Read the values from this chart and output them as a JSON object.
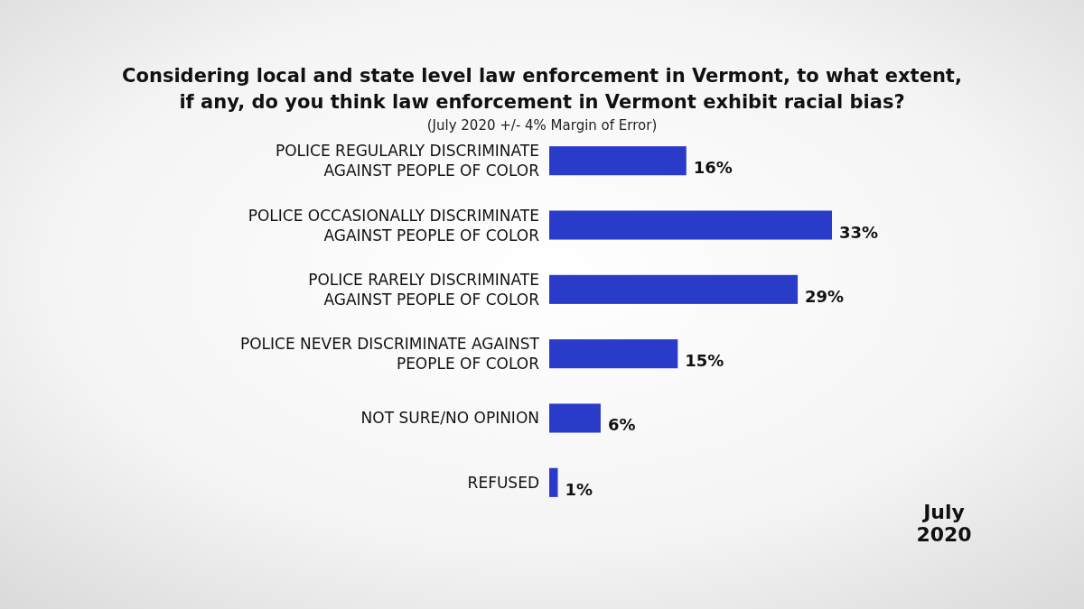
{
  "chart_data": {
    "type": "bar",
    "orientation": "horizontal",
    "title": "Considering local and state level law enforcement in Vermont, to what extent, if any, do you think law enforcement in Vermont exhibit racial bias?",
    "subtitle": "(July 2020 +/- 4% Margin of Error)",
    "categories": [
      "POLICE REGULARLY DISCRIMINATE AGAINST PEOPLE OF COLOR",
      "POLICE OCCASIONALLY DISCRIMINATE AGAINST PEOPLE OF COLOR",
      "POLICE RARELY DISCRIMINATE AGAINST PEOPLE OF COLOR",
      "POLICE NEVER DISCRIMINATE AGAINST PEOPLE OF COLOR",
      "NOT SURE/NO OPINION",
      "REFUSED"
    ],
    "values": [
      16,
      33,
      29,
      15,
      6,
      1
    ],
    "value_labels": [
      "16%",
      "33%",
      "29%",
      "15%",
      "6%",
      "1%"
    ],
    "color": "#2a3bc9",
    "annotations": [
      "July 2020"
    ]
  }
}
